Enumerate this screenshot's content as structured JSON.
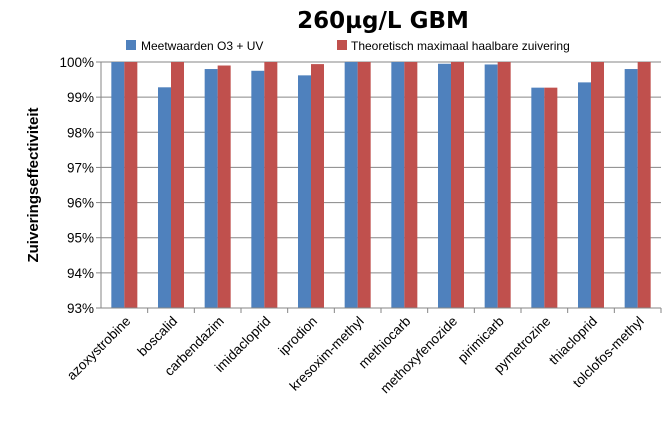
{
  "chart_data": {
    "type": "bar",
    "title": "260µg/L GBM",
    "xlabel": "",
    "ylabel": "Zuiveringseffectiviteit",
    "ylim": [
      93,
      100
    ],
    "yticks": [
      93,
      94,
      95,
      96,
      97,
      98,
      99,
      100
    ],
    "ytick_labels": [
      "93%",
      "94%",
      "95%",
      "96%",
      "97%",
      "98%",
      "99%",
      "100%"
    ],
    "grid": true,
    "legend_position": "top",
    "categories": [
      "azoxystrobine",
      "boscalid",
      "carbendazim",
      "imidacloprid",
      "iprodion",
      "kresoxim-methyl",
      "methiocarb",
      "methoxyfenozide",
      "pirimicarb",
      "pymetrozine",
      "thiacloprid",
      "tolclofos-methyl"
    ],
    "series": [
      {
        "name": "Meetwaarden O3 + UV",
        "color": "#4F81BD",
        "values": [
          100,
          99.28,
          99.8,
          99.75,
          99.62,
          100,
          100,
          99.95,
          99.93,
          99.27,
          99.42,
          99.8
        ]
      },
      {
        "name": "Theoretisch maximaal haalbare zuivering",
        "color": "#C0504D",
        "values": [
          100,
          100,
          99.9,
          100,
          99.94,
          100,
          100,
          100,
          100,
          99.27,
          100,
          100
        ]
      }
    ]
  }
}
